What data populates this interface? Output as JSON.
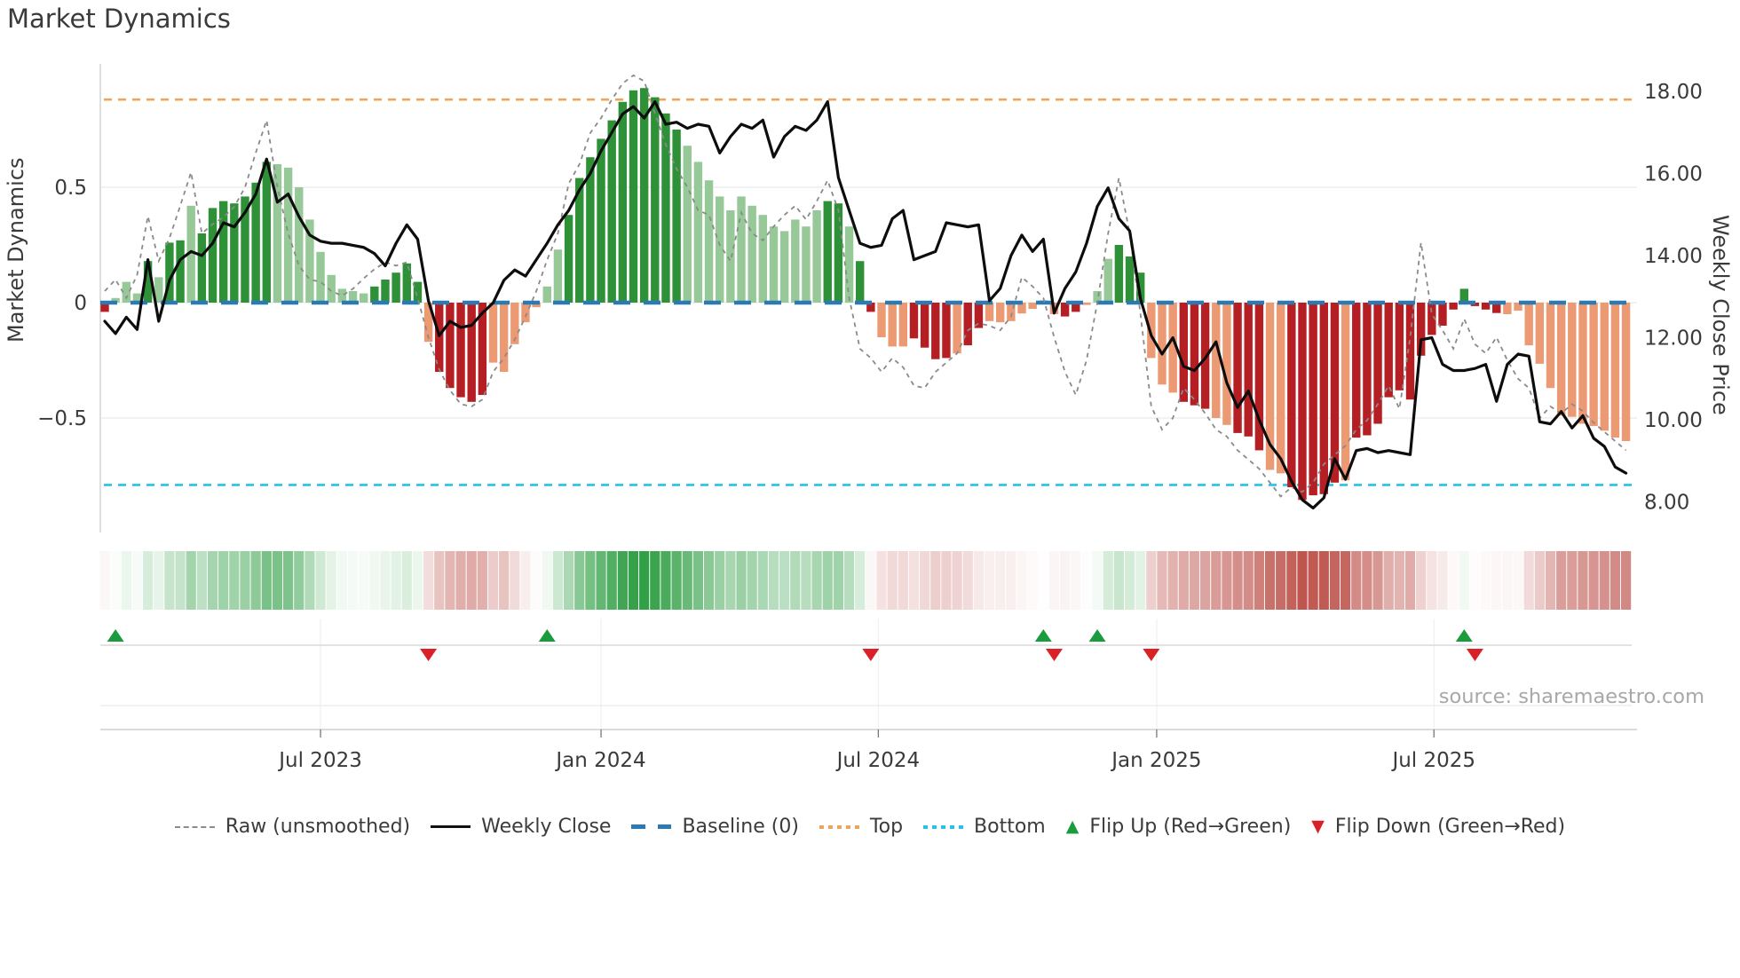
{
  "title": "Market Dynamics",
  "source": "source: sharemaestro.com",
  "axes": {
    "left": {
      "label": "Market Dynamics",
      "ticks": [
        {
          "label": "0.5",
          "value": 0.5
        },
        {
          "label": "0",
          "value": 0
        },
        {
          "label": "−0.5",
          "value": -0.5
        }
      ]
    },
    "right": {
      "label": "Weekly Close Price",
      "ticks": [
        {
          "label": "18.00",
          "value": 18
        },
        {
          "label": "16.00",
          "value": 16
        },
        {
          "label": "14.00",
          "value": 14
        },
        {
          "label": "12.00",
          "value": 12
        },
        {
          "label": "10.00",
          "value": 10
        },
        {
          "label": "8.00",
          "value": 8
        }
      ]
    },
    "x": {
      "ticks": [
        {
          "label": "Jul 2023",
          "week": 20
        },
        {
          "label": "Jan 2024",
          "week": 46
        },
        {
          "label": "Jul 2024",
          "week": 71.7
        },
        {
          "label": "Jan 2025",
          "week": 97.5
        },
        {
          "label": "Jul 2025",
          "week": 123.2
        }
      ]
    }
  },
  "legend": [
    {
      "label": "Raw (unsmoothed)",
      "swatch": "dash-gray"
    },
    {
      "label": "Weekly Close",
      "swatch": "solid-black"
    },
    {
      "label": "Baseline (0)",
      "swatch": "dash-blue"
    },
    {
      "label": "Top",
      "swatch": "dot-orange"
    },
    {
      "label": "Bottom",
      "swatch": "dot-cyan"
    },
    {
      "label": "Flip Up (Red→Green)",
      "swatch": "tri-up"
    },
    {
      "label": "Flip Down (Green→Red)",
      "swatch": "tri-down"
    }
  ],
  "colors": {
    "bar_green_dark": "#2e9138",
    "bar_green_light": "#97c998",
    "bar_red_dark": "#b51f24",
    "bar_red_light": "#ec9a74",
    "heat_green_full": "#2e9e43",
    "heat_red_full": "#bb4d46",
    "baseline": "#2b7ab3",
    "top_line": "#f0a35c",
    "bottom_line": "#27c2ea",
    "close_line": "#0d0d0d",
    "raw_line": "#8a8a8a",
    "flip_up": "#1a9c3e",
    "flip_down": "#da2128",
    "grid": "#e9e9e9",
    "spine": "#d4d4d4",
    "tick_text": "#3a3a3a"
  },
  "chart_data": {
    "type": "bar",
    "n_weeks": 142,
    "left_ylim": [
      -0.95,
      1.08
    ],
    "right_ylim": [
      7.5,
      18.6
    ],
    "baseline": 0,
    "top_level": 0.88,
    "bottom_level": -0.79,
    "flip_up_weeks": [
      1,
      41,
      87,
      92,
      126
    ],
    "flip_down_weeks": [
      30,
      71,
      88,
      97,
      127
    ],
    "oscillator": [
      -0.04,
      0.02,
      0.09,
      0.04,
      0.18,
      0.11,
      0.26,
      0.27,
      0.42,
      0.3,
      0.41,
      0.44,
      0.43,
      0.46,
      0.52,
      0.61,
      0.6,
      0.585,
      0.5,
      0.36,
      0.22,
      0.12,
      0.06,
      0.05,
      0.04,
      0.07,
      0.1,
      0.13,
      0.17,
      0.09,
      -0.17,
      -0.3,
      -0.37,
      -0.41,
      -0.43,
      -0.4,
      -0.26,
      -0.3,
      -0.18,
      -0.085,
      -0.02,
      0.07,
      0.23,
      0.38,
      0.54,
      0.63,
      0.71,
      0.79,
      0.87,
      0.92,
      0.93,
      0.89,
      0.82,
      0.75,
      0.68,
      0.61,
      0.53,
      0.46,
      0.4,
      0.46,
      0.42,
      0.38,
      0.33,
      0.31,
      0.36,
      0.33,
      0.4,
      0.44,
      0.43,
      0.33,
      0.18,
      -0.04,
      -0.15,
      -0.19,
      -0.19,
      -0.155,
      -0.195,
      -0.245,
      -0.24,
      -0.22,
      -0.185,
      -0.11,
      -0.08,
      -0.085,
      -0.08,
      -0.047,
      -0.027,
      0.01,
      -0.05,
      -0.06,
      -0.04,
      -0.01,
      0.05,
      0.19,
      0.25,
      0.2,
      0.13,
      -0.24,
      -0.355,
      -0.39,
      -0.43,
      -0.445,
      -0.46,
      -0.5,
      -0.53,
      -0.565,
      -0.58,
      -0.64,
      -0.725,
      -0.74,
      -0.8,
      -0.855,
      -0.835,
      -0.83,
      -0.78,
      -0.77,
      -0.585,
      -0.575,
      -0.525,
      -0.41,
      -0.38,
      -0.42,
      -0.23,
      -0.14,
      -0.1,
      -0.03,
      0.06,
      -0.015,
      -0.03,
      -0.045,
      -0.05,
      -0.035,
      -0.185,
      -0.265,
      -0.37,
      -0.49,
      -0.495,
      -0.525,
      -0.535,
      -0.555,
      -0.585,
      -0.6
    ],
    "oscillator_shade": "dllldlddldddddddllllllllldddddldddddllllllldddddddddddlllllllllllllddlddlllddddlddlllllllddllldddllldddlldddlldddddlddddddddddddddlllllllllllllddddddddddddddldd",
    "weekly_close": [
      12.4,
      12.1,
      12.5,
      12.2,
      13.9,
      12.4,
      13.4,
      13.9,
      14.1,
      14.0,
      14.3,
      14.8,
      14.7,
      15.05,
      15.5,
      16.35,
      15.3,
      15.5,
      14.95,
      14.5,
      14.35,
      14.3,
      14.3,
      14.25,
      14.2,
      14.05,
      13.75,
      14.3,
      14.75,
      14.4,
      12.9,
      12.05,
      12.4,
      12.25,
      12.3,
      12.6,
      12.85,
      13.4,
      13.65,
      13.5,
      13.9,
      14.3,
      14.75,
      15.1,
      15.6,
      16.0,
      16.55,
      17.0,
      17.45,
      17.63,
      17.35,
      17.75,
      17.2,
      17.25,
      17.1,
      17.2,
      17.15,
      16.5,
      16.9,
      17.2,
      17.1,
      17.3,
      16.4,
      16.9,
      17.15,
      17.05,
      17.3,
      17.75,
      15.9,
      15.1,
      14.3,
      14.2,
      14.25,
      14.9,
      15.1,
      13.9,
      14.0,
      14.1,
      14.8,
      14.75,
      14.7,
      14.75,
      12.9,
      13.2,
      14.0,
      14.5,
      14.1,
      14.4,
      12.6,
      13.2,
      13.6,
      14.3,
      15.2,
      15.65,
      14.9,
      14.6,
      12.95,
      12.05,
      11.6,
      12.0,
      11.3,
      11.2,
      11.5,
      11.9,
      10.9,
      10.3,
      10.7,
      10.0,
      9.4,
      9.05,
      8.5,
      8.05,
      7.85,
      8.1,
      9.05,
      8.55,
      9.25,
      9.3,
      9.2,
      9.25,
      9.2,
      9.15,
      11.95,
      12.0,
      11.35,
      11.2,
      11.2,
      11.25,
      11.35,
      10.45,
      11.35,
      11.6,
      11.55,
      9.95,
      9.9,
      10.2,
      9.8,
      10.1,
      9.55,
      9.35,
      8.85,
      8.7
    ],
    "raw": [
      0.05,
      0.1,
      0.02,
      0.12,
      0.375,
      0.18,
      0.28,
      0.42,
      0.565,
      0.3,
      0.34,
      0.37,
      0.415,
      0.5,
      0.65,
      0.79,
      0.5,
      0.3,
      0.16,
      0.1,
      0.09,
      0.05,
      0.03,
      0.06,
      0.105,
      0.145,
      0.175,
      0.16,
      0.175,
      0.02,
      -0.15,
      -0.29,
      -0.38,
      -0.44,
      -0.45,
      -0.42,
      -0.3,
      -0.24,
      -0.16,
      -0.06,
      0.05,
      0.185,
      0.3,
      0.515,
      0.6,
      0.735,
      0.8,
      0.88,
      0.95,
      0.985,
      0.96,
      0.82,
      0.685,
      0.58,
      0.5,
      0.4,
      0.38,
      0.25,
      0.18,
      0.39,
      0.3,
      0.27,
      0.33,
      0.38,
      0.42,
      0.36,
      0.44,
      0.53,
      0.4,
      0.02,
      -0.2,
      -0.24,
      -0.3,
      -0.24,
      -0.28,
      -0.36,
      -0.37,
      -0.3,
      -0.26,
      -0.22,
      -0.12,
      -0.09,
      -0.1,
      -0.12,
      -0.06,
      0.11,
      0.07,
      0.02,
      -0.15,
      -0.3,
      -0.4,
      -0.25,
      0.0,
      0.3,
      0.54,
      0.3,
      -0.05,
      -0.45,
      -0.55,
      -0.5,
      -0.37,
      -0.42,
      -0.48,
      -0.55,
      -0.58,
      -0.64,
      -0.68,
      -0.72,
      -0.78,
      -0.84,
      -0.8,
      -0.82,
      -0.78,
      -0.7,
      -0.66,
      -0.62,
      -0.55,
      -0.51,
      -0.44,
      -0.36,
      -0.46,
      -0.15,
      0.26,
      -0.05,
      -0.12,
      -0.2,
      -0.07,
      -0.18,
      -0.22,
      -0.15,
      -0.25,
      -0.33,
      -0.37,
      -0.5,
      -0.45,
      -0.48,
      -0.44,
      -0.47,
      -0.52,
      -0.56,
      -0.6,
      -0.64
    ]
  }
}
